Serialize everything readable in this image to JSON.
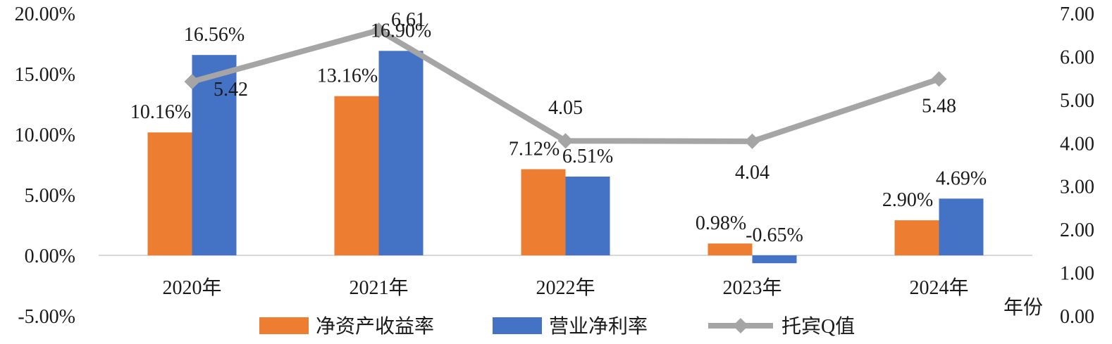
{
  "chart_data": {
    "type": "bar",
    "categories": [
      "2020年",
      "2021年",
      "2022年",
      "2023年",
      "2024年"
    ],
    "x_unit_label": "年份",
    "y_left": {
      "min": -5,
      "max": 20,
      "step": 5,
      "tick_labels": [
        "-5.00%",
        "0.00%",
        "5.00%",
        "10.00%",
        "15.00%",
        "20.00%"
      ]
    },
    "y_right": {
      "min": 0,
      "max": 7,
      "step": 1,
      "tick_labels": [
        "0.00",
        "1.00",
        "2.00",
        "3.00",
        "4.00",
        "5.00",
        "6.00",
        "7.00"
      ]
    },
    "series": [
      {
        "name": "净资产收益率",
        "type": "bar",
        "axis": "left",
        "color": "#ED7D31",
        "values": [
          10.16,
          13.16,
          7.12,
          0.98,
          2.9
        ],
        "labels": [
          "10.16%",
          "13.16%",
          "7.12%",
          "0.98%",
          "2.90%"
        ]
      },
      {
        "name": "营业净利率",
        "type": "bar",
        "axis": "left",
        "color": "#4472C4",
        "values": [
          16.56,
          16.9,
          6.51,
          -0.65,
          4.69
        ],
        "labels": [
          "16.56%",
          "16.90%",
          "6.51%",
          "-0.65%",
          "4.69%"
        ]
      },
      {
        "name": "托宾Q值",
        "type": "line",
        "axis": "right",
        "color": "#A5A5A5",
        "marker": "diamond",
        "values": [
          5.42,
          6.61,
          4.05,
          4.04,
          5.48
        ],
        "labels": [
          "5.42",
          "6.61",
          "4.05",
          "4.04",
          "5.48"
        ]
      }
    ],
    "legend_position": "bottom",
    "grid": false
  }
}
